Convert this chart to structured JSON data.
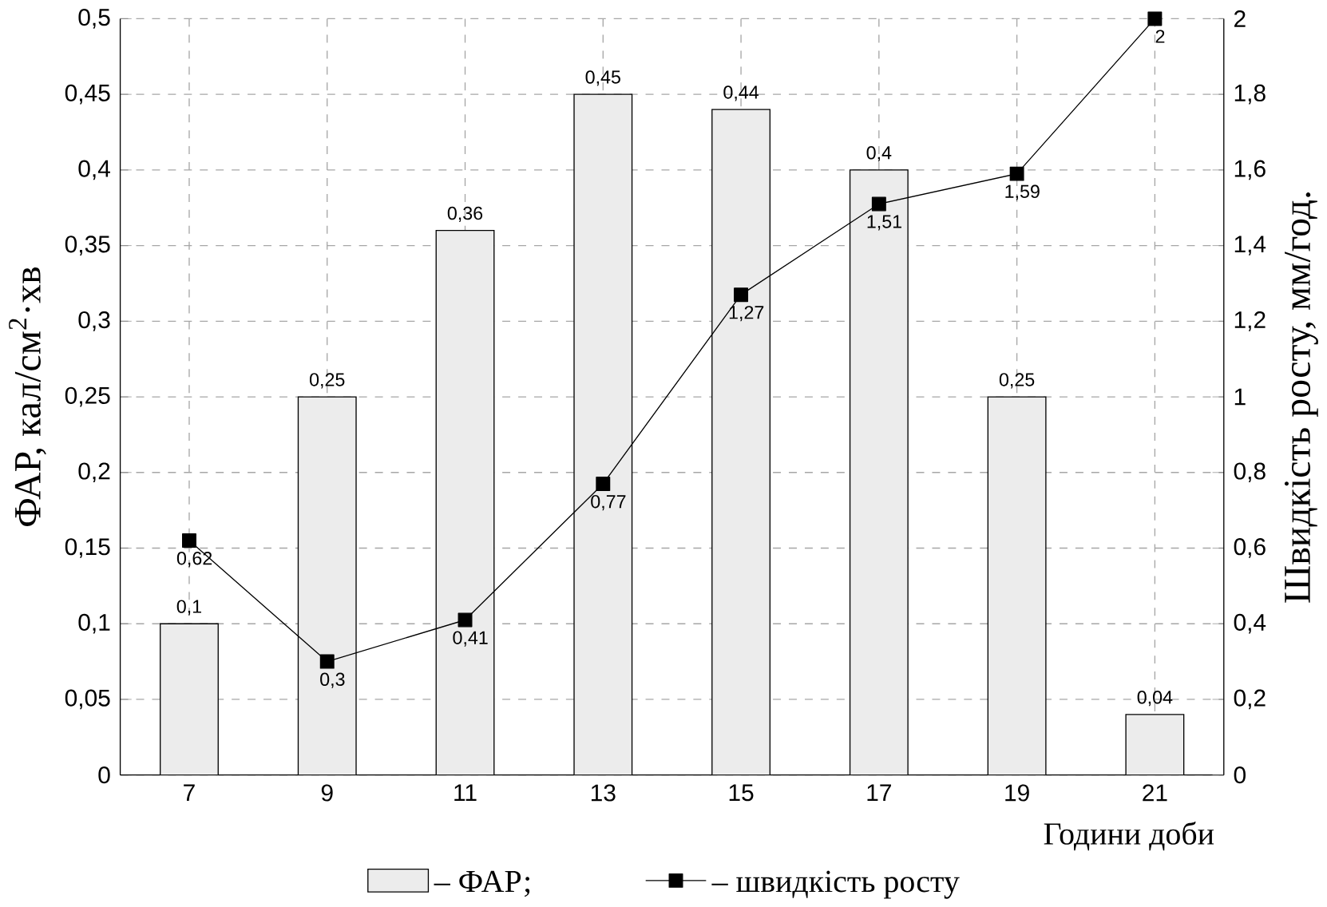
{
  "chart_data": {
    "type": "bar",
    "xlabel": "Години доби",
    "ylabel": "ФАР, кал/см$^{2}$·хв",
    "y2label": "Швидкість росту, мм/год.",
    "categories": [
      "7",
      "9",
      "11",
      "13",
      "15",
      "17",
      "19",
      "21"
    ],
    "series": [
      {
        "name": "– ФАР;",
        "color": "#ececec",
        "values": [
          0.1,
          0.25,
          0.36,
          0.45,
          0.44,
          0.4,
          0.25,
          0.04
        ],
        "value_labels": [
          "0,1",
          "0,25",
          "0,36",
          "0,45",
          "0,44",
          "0,4",
          "0,25",
          "0,04"
        ]
      },
      {
        "name": "– швидкість росту",
        "type": "line",
        "axis": "y2",
        "color": "#000000",
        "marker": "square",
        "line_style": "solid",
        "values": [
          0.62,
          0.3,
          0.41,
          0.77,
          1.27,
          1.51,
          1.59,
          2
        ],
        "value_labels": [
          "0,62",
          "0,3",
          "0,41",
          "0,77",
          "1,27",
          "1,51",
          "1,59",
          "2"
        ]
      }
    ],
    "ylim": [
      0,
      0.5
    ],
    "yticks": [
      0,
      {
        "value": 0.05,
        "label": "0,05"
      },
      {
        "value": 0.1,
        "label": "0,1"
      },
      {
        "value": 0.15,
        "label": "0,15"
      },
      {
        "value": 0.2,
        "label": "0,2"
      },
      {
        "value": 0.25,
        "label": "0,25"
      },
      {
        "value": 0.3,
        "label": "0,3"
      },
      {
        "value": 0.35,
        "label": "0,35"
      },
      {
        "value": 0.4,
        "label": "0,4"
      },
      {
        "value": 0.45,
        "label": "0,45"
      },
      {
        "value": 0.5,
        "label": "0,5"
      }
    ],
    "y2lim": [
      0,
      2
    ],
    "y2ticks": [
      0,
      {
        "value": 0.2,
        "label": "0,2"
      },
      {
        "value": 0.4,
        "label": "0,4"
      },
      {
        "value": 0.6,
        "label": "0,6"
      },
      {
        "value": 0.8,
        "label": "0,8"
      },
      1,
      {
        "value": 1.2,
        "label": "1,2"
      },
      {
        "value": 1.4,
        "label": "1,4"
      },
      {
        "value": 1.6,
        "label": "1,6"
      },
      {
        "value": 1.8,
        "label": "1,8"
      },
      2
    ],
    "grid": true,
    "legend": "bottom"
  }
}
